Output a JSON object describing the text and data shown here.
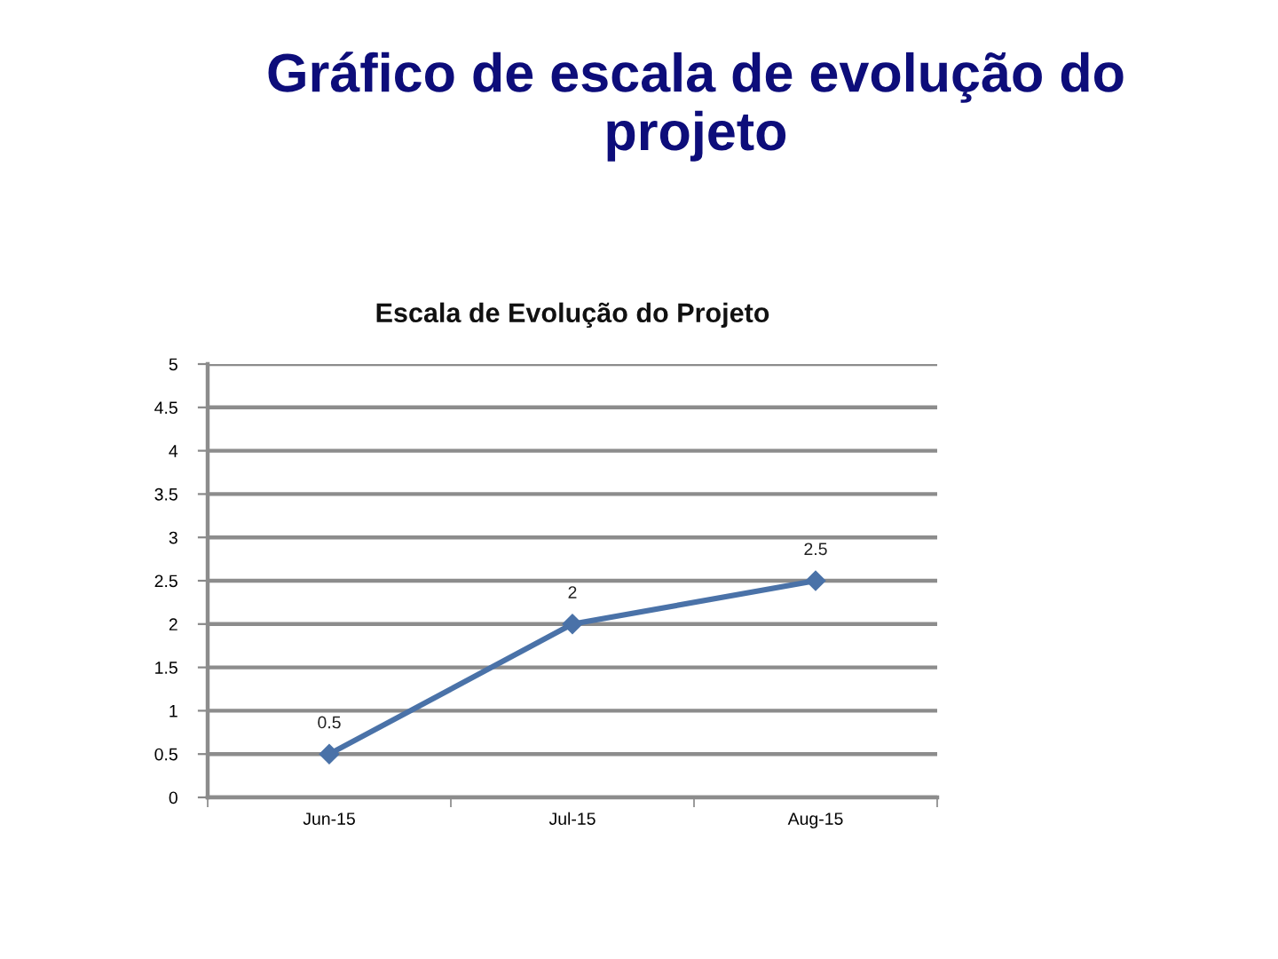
{
  "chart_data": {
    "type": "line",
    "title": "Gráfico de escala de evolução do projeto",
    "subtitle": "Escala de Evolução do Projeto",
    "categories": [
      "Jun-15",
      "Jul-15",
      "Aug-15"
    ],
    "series": [
      {
        "color": "#4a72a8",
        "values": [
          0.5,
          2,
          2.5
        ]
      }
    ],
    "ylim": [
      0,
      5
    ],
    "yticks": [
      0,
      0.5,
      1,
      1.5,
      2,
      2.5,
      3,
      3.5,
      4,
      4.5,
      5
    ],
    "grid": "y",
    "marker": "diamond",
    "line_style": "solid",
    "data_labels": true
  }
}
